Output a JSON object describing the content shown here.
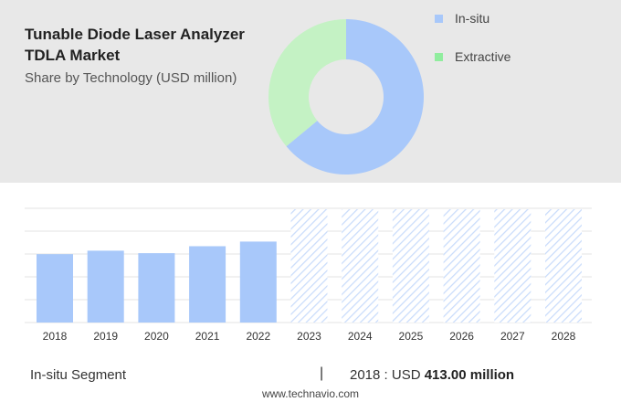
{
  "header": {
    "title": "Tunable Diode Laser Analyzer TDLA Market",
    "subtitle": "Share by Technology (USD million)"
  },
  "legend": [
    {
      "label": "In-situ",
      "color": "#a8c8fa"
    },
    {
      "label": "Extractive",
      "color": "#90ed9e"
    }
  ],
  "chart_data": [
    {
      "type": "pie",
      "categories": [
        "In-situ",
        "Extractive"
      ],
      "values": [
        64,
        36
      ],
      "colors": [
        "#a8c8fa",
        "#c4f2c4"
      ],
      "donut": true
    },
    {
      "type": "bar",
      "categories": [
        "2018",
        "2019",
        "2020",
        "2021",
        "2022",
        "2023",
        "2024",
        "2025",
        "2026",
        "2027",
        "2028"
      ],
      "values": [
        413,
        434,
        419,
        461,
        489,
        null,
        null,
        null,
        null,
        null,
        null
      ],
      "forecast_categories": [
        "2023",
        "2024",
        "2025",
        "2026",
        "2027",
        "2028"
      ],
      "ylim": [
        0,
        690
      ],
      "grid": true,
      "bar_color": "#a8c8fa"
    }
  ],
  "footer": {
    "segment": "In-situ Segment",
    "separator": "|",
    "value_prefix": "2018 : USD",
    "value": "413.00 million",
    "url": "www.technavio.com"
  }
}
